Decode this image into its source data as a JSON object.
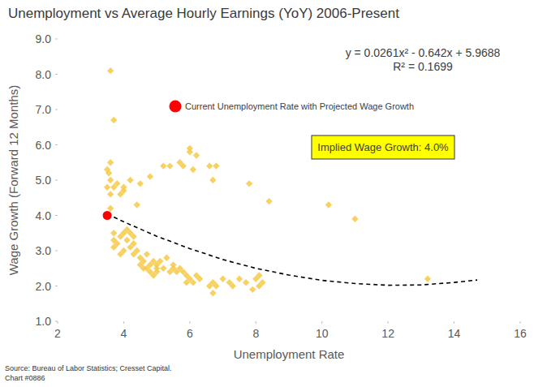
{
  "chart_data": {
    "type": "scatter",
    "title": "Unemployment vs Average Hourly Earnings (YoY) 2006-Present",
    "x_label": "Unemployment Rate",
    "y_label": "Wage Growth (Forward 12 Months)",
    "annotations": [
      "y = 0.0261x² - 0.642x + 5.9688",
      "R² = 0.1699",
      "Implied Wage Growth: 4.0%"
    ],
    "source": "Source: Bureau of Labor Statistics; Cresset Capital.",
    "note": "Chart #0886",
    "xlim": [
      2,
      16
    ],
    "xticks": [
      2,
      4,
      6,
      8,
      10,
      12,
      14,
      16
    ],
    "ylim": [
      1,
      9
    ],
    "yticks": [
      {
        "value": 1,
        "label": "1.0"
      },
      {
        "value": 2,
        "label": "2.0"
      },
      {
        "value": 3,
        "label": "3.0"
      },
      {
        "value": 4,
        "label": "4.0"
      },
      {
        "value": 5,
        "label": "5.0"
      },
      {
        "value": 6,
        "label": "6.0"
      },
      {
        "value": 7,
        "label": "7.0"
      },
      {
        "value": 8,
        "label": "8.0"
      },
      {
        "value": 9,
        "label": "9.0"
      }
    ],
    "grid": false,
    "legend": "top",
    "series": [
      {
        "type": "scatter",
        "marker": "diamond",
        "color": "#f7c948",
        "x": [
          3.6,
          3.7,
          3.5,
          3.55,
          3.6,
          3.5,
          3.6,
          3.7,
          3.8,
          3.9,
          4.0,
          4.0,
          3.6,
          3.6,
          4.2,
          4.5,
          4.4,
          4.8,
          5.2,
          5.4,
          5.7,
          5.8,
          6.0,
          6.0,
          6.2,
          6.1,
          6.6,
          6.8,
          6.7,
          7.8,
          8.4,
          10.2,
          11.0,
          13.2,
          3.7,
          3.7,
          3.7,
          3.8,
          3.9,
          3.9,
          4.0,
          4.0,
          4.1,
          4.1,
          4.2,
          4.2,
          4.3,
          4.3,
          4.4,
          4.5,
          4.5,
          4.6,
          4.7,
          4.7,
          4.8,
          4.8,
          4.9,
          4.9,
          5.0,
          5.0,
          5.1,
          5.2,
          5.3,
          5.4,
          5.5,
          5.6,
          5.7,
          5.8,
          5.9,
          6.0,
          6.1,
          6.2,
          6.3,
          6.6,
          6.7,
          6.7,
          7.0,
          7.2,
          7.3,
          7.5,
          7.7,
          7.9,
          8.0,
          8.1,
          8.2,
          8.1,
          6.8,
          5.9,
          5.5,
          5.0,
          4.6,
          4.3
        ],
        "values": [
          8.1,
          6.7,
          5.3,
          5.2,
          5.0,
          4.8,
          5.5,
          4.8,
          4.9,
          4.6,
          4.7,
          4.8,
          4.6,
          4.2,
          5.0,
          4.9,
          4.3,
          5.1,
          5.4,
          5.4,
          5.5,
          5.4,
          5.9,
          5.8,
          5.7,
          5.3,
          5.4,
          5.4,
          5.0,
          4.9,
          4.4,
          4.3,
          3.9,
          2.2,
          3.1,
          3.3,
          3.5,
          3.2,
          3.4,
          2.9,
          3.0,
          3.5,
          3.6,
          3.3,
          3.1,
          3.5,
          3.4,
          2.9,
          3.0,
          2.8,
          2.6,
          2.7,
          2.5,
          2.9,
          2.4,
          2.6,
          2.3,
          2.7,
          2.5,
          2.6,
          2.7,
          2.5,
          2.8,
          2.4,
          2.5,
          2.4,
          2.5,
          2.4,
          2.3,
          2.2,
          2.1,
          2.3,
          2.2,
          2.0,
          1.8,
          2.1,
          2.2,
          2.1,
          2.0,
          2.2,
          2.1,
          1.9,
          2.2,
          2.0,
          2.1,
          2.3,
          2.0,
          2.1,
          2.6,
          2.4,
          2.5,
          3.2
        ]
      },
      {
        "type": "scatter",
        "marker": "circle",
        "color": "#ff0000",
        "name": "Current Unemployment Rate with Projected Wage Growth",
        "x": [
          3.5
        ],
        "values": [
          4.0
        ]
      },
      {
        "type": "line",
        "line_style": "dashed",
        "color": "#000000",
        "x": [
          3.5,
          4,
          5,
          6,
          7,
          8,
          9,
          10,
          11,
          12,
          13,
          14,
          14.7
        ],
        "values": [
          4.04,
          3.82,
          3.41,
          3.06,
          2.75,
          2.5,
          2.31,
          2.16,
          2.07,
          2.02,
          2.03,
          2.1,
          2.17
        ]
      }
    ]
  }
}
